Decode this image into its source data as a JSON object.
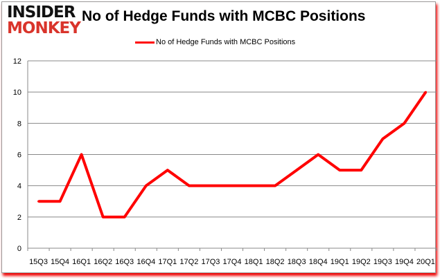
{
  "logo": {
    "line1": "INSIDER",
    "line2": "MONKEY"
  },
  "chart_data": {
    "type": "line",
    "title": "No of Hedge Funds with MCBC Positions",
    "categories": [
      "15Q3",
      "15Q4",
      "16Q1",
      "16Q2",
      "16Q3",
      "16Q4",
      "17Q1",
      "17Q2",
      "17Q3",
      "17Q4",
      "18Q1",
      "18Q2",
      "18Q3",
      "18Q4",
      "19Q1",
      "19Q2",
      "19Q3",
      "19Q4",
      "20Q1"
    ],
    "series": [
      {
        "name": "No of Hedge Funds with MCBC Positions",
        "color": "#ff0000",
        "values": [
          3,
          3,
          6,
          2,
          2,
          4,
          5,
          4,
          4,
          4,
          4,
          4,
          5,
          6,
          5,
          5,
          7,
          8,
          10
        ]
      }
    ],
    "yticks": [
      0,
      2,
      4,
      6,
      8,
      10,
      12
    ],
    "ylim": [
      0,
      12
    ],
    "grid": true,
    "legend": "top"
  }
}
